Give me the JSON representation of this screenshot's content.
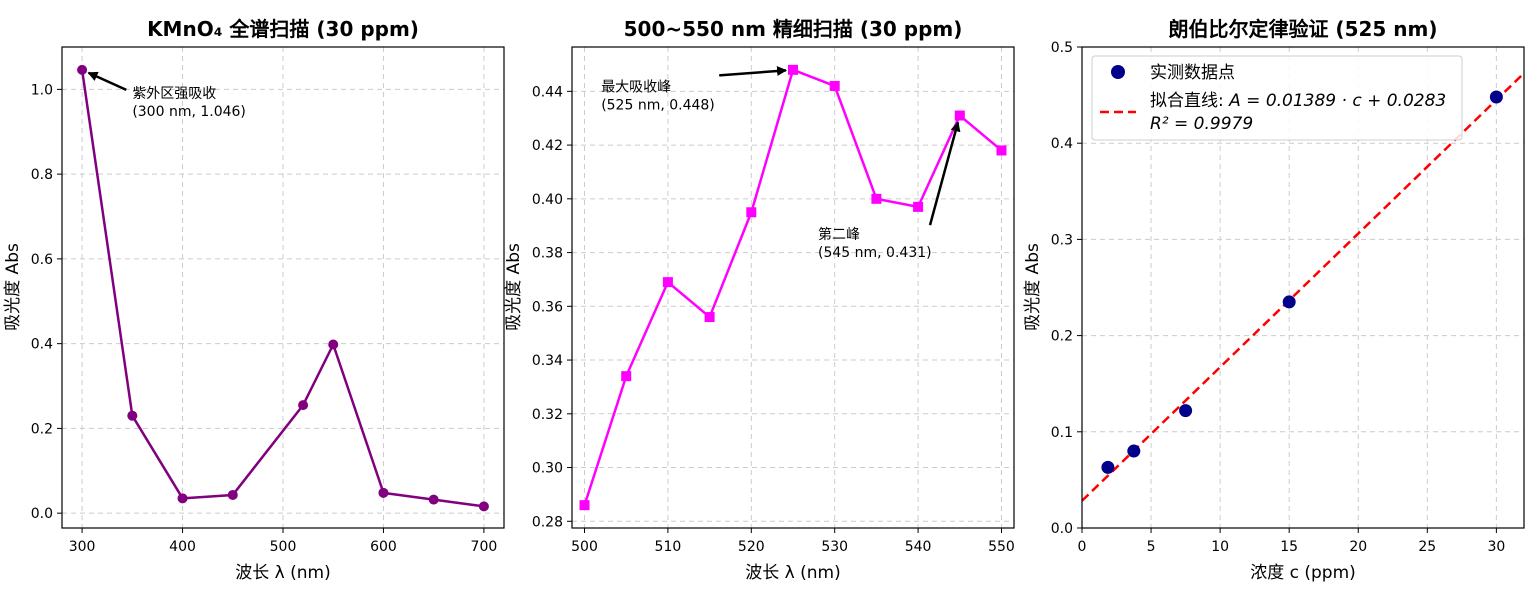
{
  "chart_data": [
    {
      "type": "line",
      "title": "KMnO₄ 全谱扫描 (30 ppm)",
      "xlabel": "波长 λ (nm)",
      "ylabel": "吸光度 Abs",
      "xlim": [
        280,
        720
      ],
      "ylim": [
        -0.035,
        1.1
      ],
      "xticks": [
        300,
        400,
        500,
        600,
        700
      ],
      "yticks": [
        0.0,
        0.2,
        0.4,
        0.6,
        0.8,
        1.0
      ],
      "ytick_labels": [
        "0.0",
        "0.2",
        "0.4",
        "0.6",
        "0.8",
        "1.0"
      ],
      "grid": true,
      "series": [
        {
          "color": "#800080",
          "marker": "circle",
          "x": [
            300,
            350,
            400,
            450,
            520,
            550,
            600,
            650,
            700
          ],
          "y": [
            1.046,
            0.23,
            0.035,
            0.043,
            0.255,
            0.398,
            0.048,
            0.032,
            0.016
          ]
        }
      ],
      "annotations": [
        {
          "lines": [
            "紫外区强吸收",
            "(300 nm, 1.046)"
          ],
          "xy": [
            300,
            1.046
          ],
          "xytext": [
            350,
            0.98
          ]
        }
      ]
    },
    {
      "type": "line",
      "title": "500~550 nm 精细扫描 (30 ppm)",
      "xlabel": "波长 λ (nm)",
      "ylabel": "吸光度 Abs",
      "xlim": [
        498.5,
        551.5
      ],
      "ylim": [
        0.2775,
        0.4565
      ],
      "xticks": [
        500,
        510,
        520,
        530,
        540,
        550
      ],
      "yticks": [
        0.28,
        0.3,
        0.32,
        0.34,
        0.36,
        0.38,
        0.4,
        0.42,
        0.44
      ],
      "ytick_labels": [
        "0.28",
        "0.30",
        "0.32",
        "0.34",
        "0.36",
        "0.38",
        "0.40",
        "0.42",
        "0.44"
      ],
      "grid": true,
      "series": [
        {
          "color": "#ff00ff",
          "marker": "square",
          "x": [
            500,
            505,
            510,
            515,
            520,
            525,
            530,
            535,
            540,
            545,
            550
          ],
          "y": [
            0.286,
            0.334,
            0.369,
            0.356,
            0.395,
            0.448,
            0.442,
            0.4,
            0.397,
            0.431,
            0.418
          ]
        }
      ],
      "annotations": [
        {
          "lines": [
            "最大吸收峰",
            "(525 nm, 0.448)"
          ],
          "xy": [
            525,
            0.448
          ],
          "xytext": [
            502,
            0.44
          ]
        },
        {
          "lines": [
            "第二峰",
            "(545 nm, 0.431)"
          ],
          "xy": [
            545,
            0.431
          ],
          "xytext": [
            528,
            0.385
          ]
        }
      ]
    },
    {
      "type": "scatter",
      "title": "朗伯比尔定律验证 (525 nm)",
      "xlabel": "浓度 c (ppm)",
      "ylabel": "吸光度 Abs",
      "xlim": [
        0,
        32
      ],
      "ylim": [
        0,
        0.5
      ],
      "xticks": [
        0,
        5,
        10,
        15,
        20,
        25,
        30
      ],
      "yticks": [
        0.0,
        0.1,
        0.2,
        0.3,
        0.4,
        0.5
      ],
      "ytick_labels": [
        "0.0",
        "0.1",
        "0.2",
        "0.3",
        "0.4",
        "0.5"
      ],
      "grid": true,
      "legend_position": "top-left",
      "series": [
        {
          "name": "实测数据点",
          "color": "#00008b",
          "marker": "circle",
          "x": [
            1.875,
            3.75,
            7.5,
            15,
            30
          ],
          "y": [
            0.063,
            0.08,
            0.122,
            0.235,
            0.448
          ]
        }
      ],
      "fit": {
        "name_prefix": "拟合直线: ",
        "equation": "A = 0.01389 · c + 0.0283",
        "r2_label": "R² = 0.9979",
        "slope": 0.01389,
        "intercept": 0.0283,
        "color": "#ff0000",
        "style": "dashed"
      }
    }
  ]
}
